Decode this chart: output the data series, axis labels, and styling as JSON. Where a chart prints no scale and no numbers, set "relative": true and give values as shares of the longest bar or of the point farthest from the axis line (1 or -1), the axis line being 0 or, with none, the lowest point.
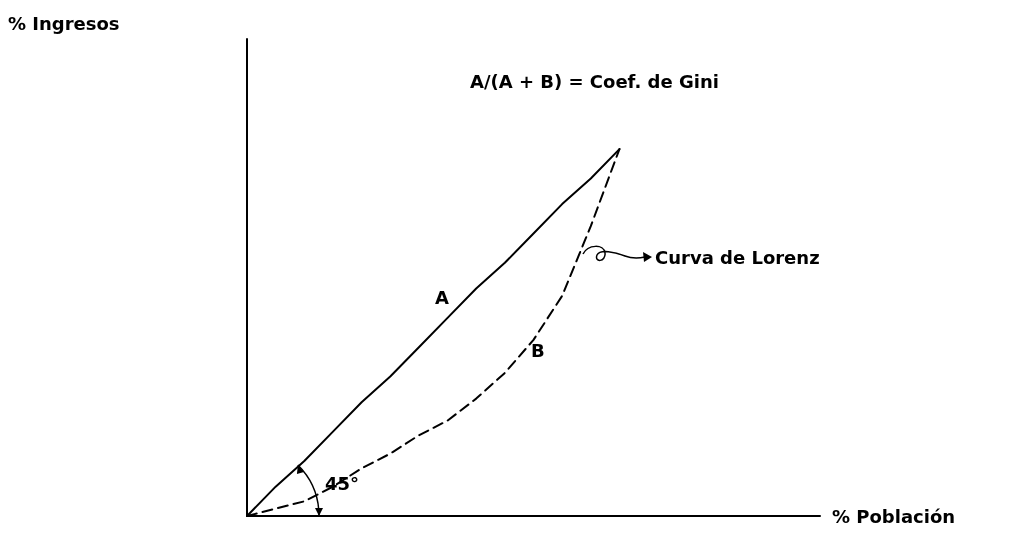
{
  "chart_data": {
    "type": "line",
    "relative": true,
    "xlabel": "% Población",
    "grid": false,
    "marker": "none",
    "categories": [
      null,
      null,
      null,
      null,
      null,
      null,
      null,
      null,
      null,
      null,
      null,
      null,
      null,
      null,
      null,
      null,
      null,
      null,
      null,
      null,
      null
    ],
    "series": [
      {
        "color": "#000000",
        "line_style": "solid",
        "values": [
          0,
          0.08,
          0.15,
          0.23,
          0.31,
          0.38,
          0.46,
          0.54,
          0.62,
          0.69,
          0.77,
          0.85,
          0.92,
          1,
          null,
          null,
          null,
          null,
          null,
          null,
          null
        ]
      },
      {
        "color": "#000000",
        "line_style": "dashed",
        "values": [
          0,
          0.02,
          0.04,
          0.08,
          0.13,
          0.17,
          0.22,
          0.26,
          0.32,
          0.39,
          0.48,
          0.6,
          0.79,
          1,
          null,
          null,
          null,
          null,
          null,
          null,
          null
        ]
      }
    ],
    "annotations": [
      "A/(A + B) = Coef. de Gini",
      "Curva de Lorenz",
      "A",
      "B",
      "45°",
      "% Ingresos"
    ]
  }
}
